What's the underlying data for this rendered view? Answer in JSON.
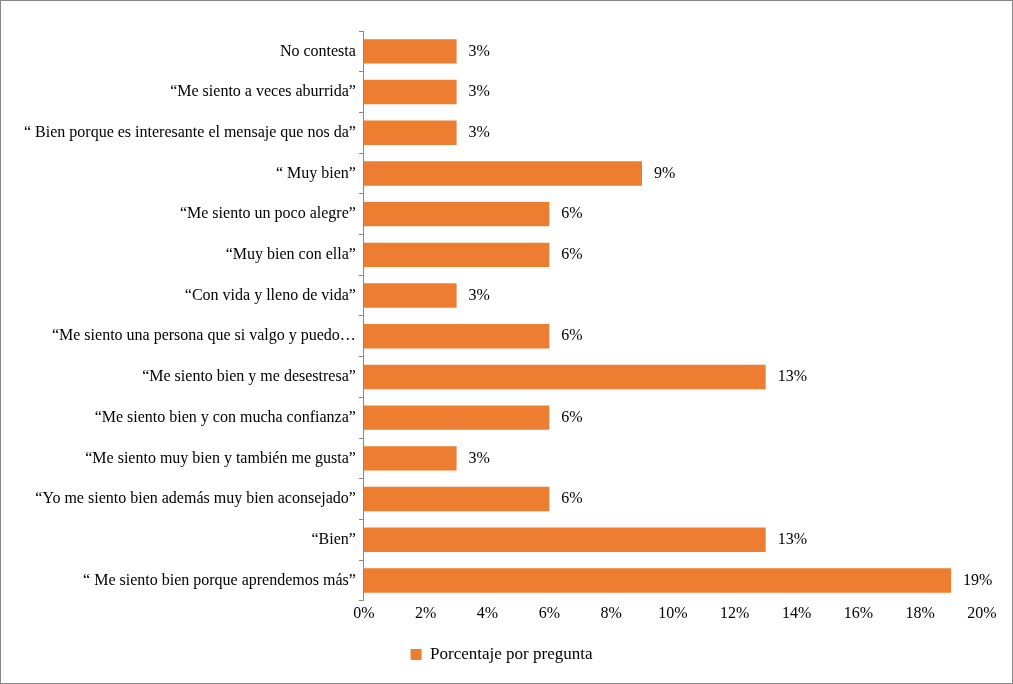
{
  "chart_data": {
    "type": "bar",
    "orientation": "horizontal",
    "categories": [
      "No contesta",
      "“Me siento a veces aburrida”",
      "“ Bien porque es interesante el mensaje que nos da”",
      "“ Muy bien”",
      "“Me siento un poco alegre”",
      "“Muy bien con ella”",
      "“Con vida y lleno de vida”",
      "“Me siento una persona que si valgo y puedo…",
      "“Me siento bien y me desestresa”",
      "“Me siento bien y con mucha confianza”",
      "“Me siento muy bien y también me gusta”",
      "“Yo me siento bien además muy bien aconsejado”",
      "“Bien”",
      "“ Me siento bien porque aprendemos más”"
    ],
    "series": [
      {
        "name": "Porcentaje por pregunta",
        "color": "#ed7d31",
        "values": [
          3,
          3,
          3,
          9,
          6,
          6,
          3,
          6,
          13,
          6,
          3,
          6,
          13,
          19
        ],
        "value_labels": [
          "3%",
          "3%",
          "3%",
          "9%",
          "6%",
          "6%",
          "3%",
          "6%",
          "13%",
          "6%",
          "3%",
          "6%",
          "13%",
          "19%"
        ]
      }
    ],
    "xlim": [
      0,
      20
    ],
    "xticks": [
      {
        "value": 0,
        "label": "0%"
      },
      {
        "value": 2,
        "label": "2%"
      },
      {
        "value": 4,
        "label": "4%"
      },
      {
        "value": 6,
        "label": "6%"
      },
      {
        "value": 8,
        "label": "8%"
      },
      {
        "value": 10,
        "label": "10%"
      },
      {
        "value": 12,
        "label": "12%"
      },
      {
        "value": 14,
        "label": "14%"
      },
      {
        "value": 16,
        "label": "16%"
      },
      {
        "value": 18,
        "label": "18%"
      },
      {
        "value": 20,
        "label": "20%"
      }
    ],
    "grid": false,
    "legend": "bottom"
  }
}
